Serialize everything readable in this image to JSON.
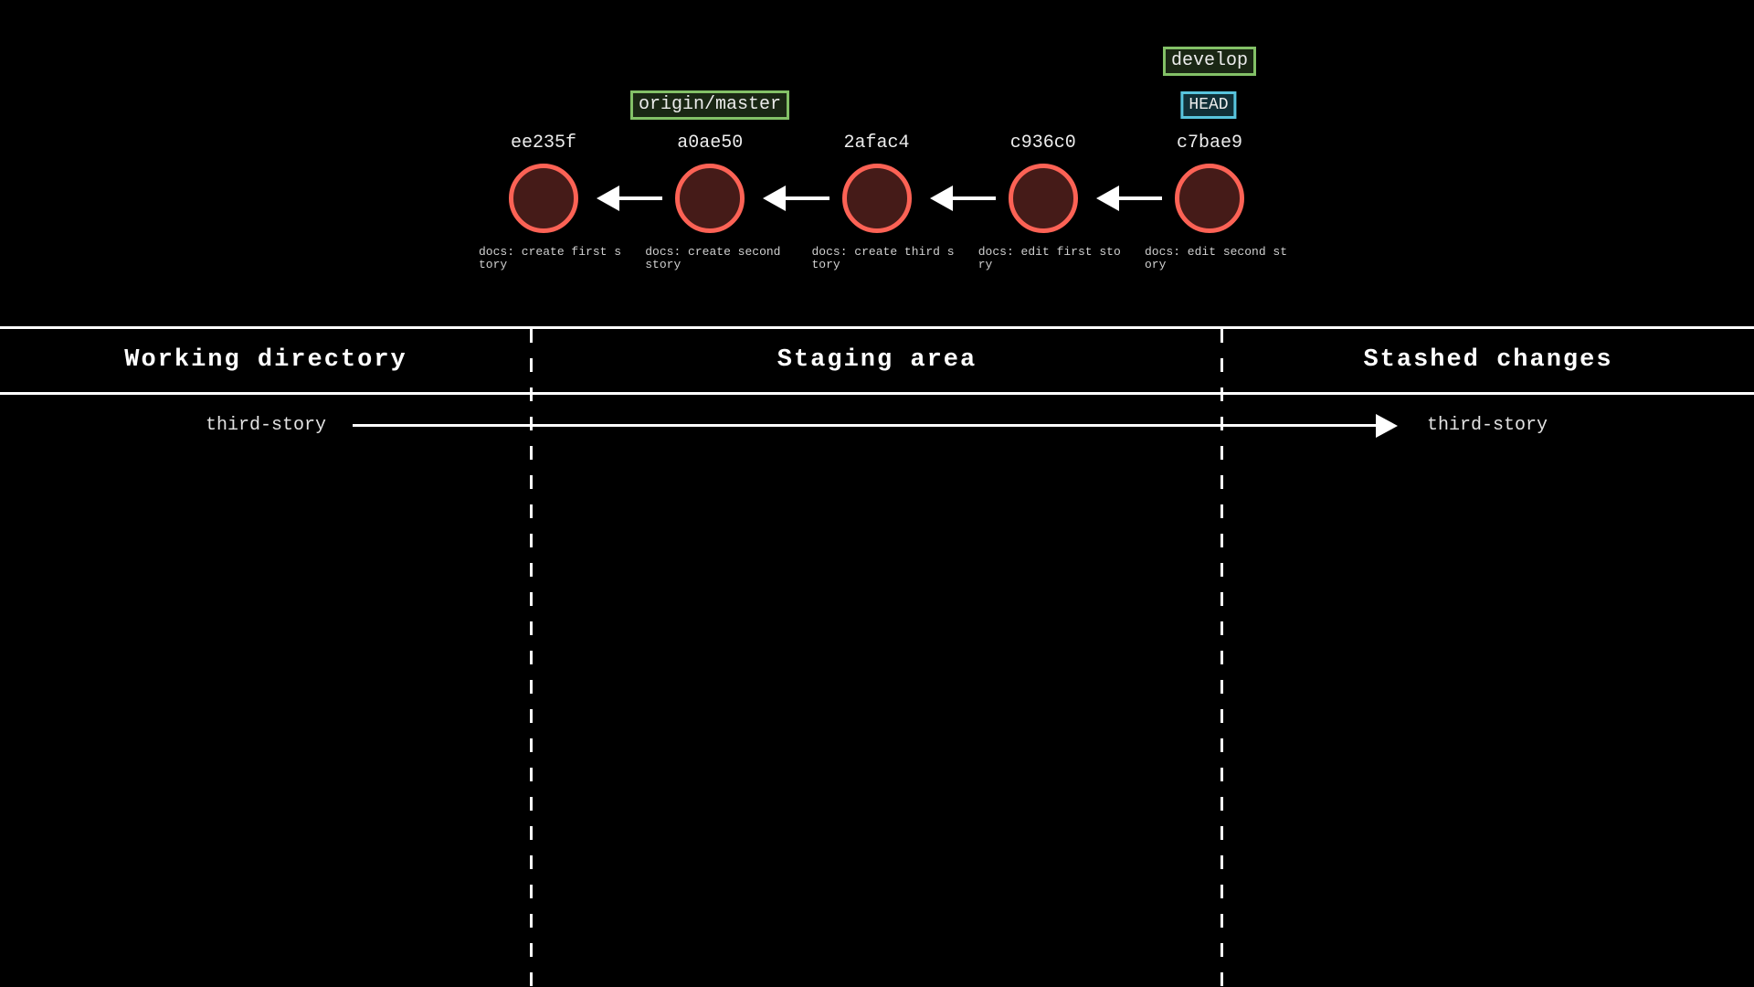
{
  "colors": {
    "background": "#000000",
    "commit_stroke": "#fc6255",
    "commit_fill": "#451b18",
    "branch_border": "#83c167",
    "branch_fill": "#1a2714",
    "head_border": "#58c4dd",
    "head_fill": "#113038",
    "arrow": "#ffffff",
    "text": "#ececec",
    "message_text": "#cfcfcf"
  },
  "graph": {
    "commits": [
      {
        "hash": "ee235f",
        "message_lines": [
          "docs: create first s",
          "tory"
        ]
      },
      {
        "hash": "a0ae50",
        "message_lines": [
          "docs: create second",
          "story"
        ]
      },
      {
        "hash": "2afac4",
        "message_lines": [
          "docs: create third s",
          "tory"
        ]
      },
      {
        "hash": "c936c0",
        "message_lines": [
          "docs: edit first sto",
          "ry"
        ]
      },
      {
        "hash": "c7bae9",
        "message_lines": [
          "docs: edit second st",
          "ory"
        ]
      }
    ],
    "refs": [
      {
        "label": "origin/master",
        "type": "branch",
        "attached_to": "a0ae50"
      },
      {
        "label": "develop",
        "type": "branch",
        "attached_to": "c7bae9"
      },
      {
        "label": "HEAD",
        "type": "head",
        "attached_to": "c7bae9"
      }
    ]
  },
  "zones": {
    "headers": [
      "Working directory",
      "Staging area",
      "Stashed changes"
    ],
    "working_directory": {
      "items": [
        "third-story"
      ]
    },
    "staging_area": {
      "items": []
    },
    "stashed_changes": {
      "items": [
        "third-story"
      ]
    },
    "stash_arrow": {
      "from": "Working directory",
      "to": "Stashed changes"
    }
  }
}
